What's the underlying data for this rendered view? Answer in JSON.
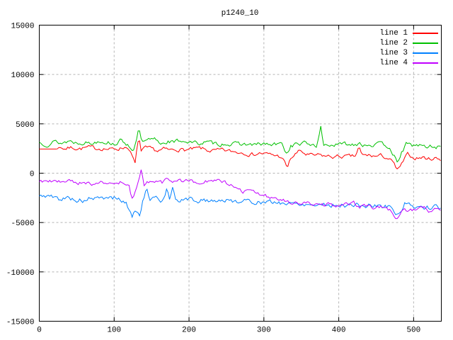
{
  "chart_data": {
    "type": "line",
    "title": "p1240_10",
    "xlabel": "",
    "ylabel": "",
    "xlim": [
      0,
      537
    ],
    "ylim": [
      -15000,
      15000
    ],
    "xticks": [
      0,
      100,
      200,
      300,
      400,
      500
    ],
    "yticks": [
      -15000,
      -10000,
      -5000,
      0,
      5000,
      10000,
      15000
    ],
    "grid": "dashed",
    "grid_color": "#b5b5b5",
    "border_color": "#000000",
    "background": "#ffffff",
    "legend_position": "top-right-inside",
    "sample_step": 2,
    "noise_smooth": 0.55,
    "series": [
      {
        "name": "line 1",
        "color": "#ff0000",
        "noise_amp": 210,
        "seed": 7,
        "flat_until": 24,
        "keypoints": [
          [
            0,
            2450
          ],
          [
            24,
            2450
          ],
          [
            28,
            2700
          ],
          [
            34,
            2500
          ],
          [
            45,
            2600
          ],
          [
            55,
            2500
          ],
          [
            65,
            2600
          ],
          [
            75,
            2500
          ],
          [
            85,
            2550
          ],
          [
            95,
            2400
          ],
          [
            105,
            2500
          ],
          [
            112,
            2600
          ],
          [
            118,
            2700
          ],
          [
            124,
            1700
          ],
          [
            128,
            900
          ],
          [
            133,
            3800
          ],
          [
            136,
            2200
          ],
          [
            142,
            2500
          ],
          [
            150,
            2400
          ],
          [
            158,
            2250
          ],
          [
            166,
            2400
          ],
          [
            175,
            2300
          ],
          [
            185,
            2450
          ],
          [
            195,
            2350
          ],
          [
            205,
            2400
          ],
          [
            215,
            2500
          ],
          [
            225,
            2300
          ],
          [
            235,
            2250
          ],
          [
            245,
            2300
          ],
          [
            255,
            2200
          ],
          [
            265,
            2150
          ],
          [
            275,
            2100
          ],
          [
            285,
            1900
          ],
          [
            295,
            2050
          ],
          [
            305,
            1900
          ],
          [
            315,
            1800
          ],
          [
            322,
            1700
          ],
          [
            327,
            1200
          ],
          [
            331,
            500
          ],
          [
            336,
            1500
          ],
          [
            345,
            2100
          ],
          [
            349,
            2250
          ],
          [
            356,
            1900
          ],
          [
            365,
            1750
          ],
          [
            375,
            1800
          ],
          [
            385,
            1700
          ],
          [
            395,
            1650
          ],
          [
            405,
            1700
          ],
          [
            415,
            1650
          ],
          [
            422,
            1700
          ],
          [
            427,
            2650
          ],
          [
            431,
            1750
          ],
          [
            440,
            1800
          ],
          [
            450,
            1700
          ],
          [
            458,
            1750
          ],
          [
            466,
            1500
          ],
          [
            472,
            1100
          ],
          [
            477,
            430
          ],
          [
            481,
            400
          ],
          [
            487,
            1300
          ],
          [
            493,
            1950
          ],
          [
            498,
            1600
          ],
          [
            505,
            1550
          ],
          [
            512,
            1600
          ],
          [
            520,
            1450
          ],
          [
            528,
            1550
          ],
          [
            537,
            1400
          ]
        ]
      },
      {
        "name": "line 2",
        "color": "#00c000",
        "noise_amp": 230,
        "seed": 13,
        "flat_until": 0,
        "keypoints": [
          [
            0,
            3100
          ],
          [
            10,
            3000
          ],
          [
            20,
            3200
          ],
          [
            30,
            3050
          ],
          [
            40,
            3300
          ],
          [
            50,
            3100
          ],
          [
            60,
            3200
          ],
          [
            70,
            3000
          ],
          [
            80,
            3350
          ],
          [
            90,
            3200
          ],
          [
            100,
            3000
          ],
          [
            108,
            3250
          ],
          [
            115,
            3100
          ],
          [
            120,
            2800
          ],
          [
            126,
            2400
          ],
          [
            130,
            3200
          ],
          [
            133,
            4700
          ],
          [
            137,
            3000
          ],
          [
            145,
            3250
          ],
          [
            155,
            3400
          ],
          [
            163,
            3000
          ],
          [
            172,
            3300
          ],
          [
            180,
            3100
          ],
          [
            190,
            3350
          ],
          [
            200,
            3200
          ],
          [
            210,
            3000
          ],
          [
            220,
            3150
          ],
          [
            230,
            3000
          ],
          [
            240,
            2950
          ],
          [
            250,
            3050
          ],
          [
            260,
            2900
          ],
          [
            270,
            2950
          ],
          [
            280,
            2900
          ],
          [
            290,
            2850
          ],
          [
            300,
            2950
          ],
          [
            310,
            2850
          ],
          [
            318,
            2900
          ],
          [
            325,
            2900
          ],
          [
            331,
            1900
          ],
          [
            336,
            2800
          ],
          [
            345,
            2950
          ],
          [
            355,
            3000
          ],
          [
            365,
            2900
          ],
          [
            371,
            2850
          ],
          [
            376,
            4600
          ],
          [
            380,
            2850
          ],
          [
            390,
            2900
          ],
          [
            400,
            2850
          ],
          [
            408,
            2950
          ],
          [
            416,
            2900
          ],
          [
            424,
            3000
          ],
          [
            427,
            3300
          ],
          [
            431,
            2900
          ],
          [
            440,
            2950
          ],
          [
            450,
            2900
          ],
          [
            460,
            2850
          ],
          [
            468,
            2700
          ],
          [
            474,
            1800
          ],
          [
            479,
            700
          ],
          [
            484,
            2200
          ],
          [
            490,
            2900
          ],
          [
            497,
            2800
          ],
          [
            505,
            2850
          ],
          [
            512,
            2750
          ],
          [
            518,
            2600
          ],
          [
            525,
            2750
          ],
          [
            531,
            2650
          ],
          [
            537,
            2700
          ]
        ]
      },
      {
        "name": "line 3",
        "color": "#0080ff",
        "noise_amp": 250,
        "seed": 5,
        "flat_until": 0,
        "keypoints": [
          [
            0,
            -2400
          ],
          [
            10,
            -2250
          ],
          [
            20,
            -2500
          ],
          [
            30,
            -2650
          ],
          [
            40,
            -2450
          ],
          [
            50,
            -2700
          ],
          [
            60,
            -2800
          ],
          [
            70,
            -2500
          ],
          [
            80,
            -2650
          ],
          [
            90,
            -2500
          ],
          [
            100,
            -2450
          ],
          [
            108,
            -2700
          ],
          [
            115,
            -3000
          ],
          [
            120,
            -3600
          ],
          [
            124,
            -4400
          ],
          [
            129,
            -3500
          ],
          [
            134,
            -4300
          ],
          [
            139,
            -2600
          ],
          [
            143,
            -1600
          ],
          [
            148,
            -2800
          ],
          [
            155,
            -2550
          ],
          [
            161,
            -2950
          ],
          [
            167,
            -2400
          ],
          [
            170,
            -1400
          ],
          [
            174,
            -2500
          ],
          [
            178,
            -1200
          ],
          [
            182,
            -2700
          ],
          [
            190,
            -2750
          ],
          [
            200,
            -2600
          ],
          [
            210,
            -2800
          ],
          [
            220,
            -2700
          ],
          [
            230,
            -2800
          ],
          [
            240,
            -2700
          ],
          [
            250,
            -2780
          ],
          [
            260,
            -2820
          ],
          [
            270,
            -2750
          ],
          [
            280,
            -2900
          ],
          [
            290,
            -2850
          ],
          [
            300,
            -2950
          ],
          [
            310,
            -3000
          ],
          [
            320,
            -2950
          ],
          [
            330,
            -3050
          ],
          [
            340,
            -3100
          ],
          [
            350,
            -3050
          ],
          [
            360,
            -3120
          ],
          [
            370,
            -3180
          ],
          [
            380,
            -3100
          ],
          [
            390,
            -3220
          ],
          [
            400,
            -3180
          ],
          [
            410,
            -3260
          ],
          [
            420,
            -3220
          ],
          [
            430,
            -3320
          ],
          [
            440,
            -3260
          ],
          [
            450,
            -3320
          ],
          [
            460,
            -3380
          ],
          [
            468,
            -3300
          ],
          [
            473,
            -3700
          ],
          [
            477,
            -4400
          ],
          [
            482,
            -3900
          ],
          [
            488,
            -3000
          ],
          [
            492,
            -3200
          ],
          [
            497,
            -3450
          ],
          [
            505,
            -3300
          ],
          [
            512,
            -3420
          ],
          [
            520,
            -3500
          ],
          [
            528,
            -3420
          ],
          [
            537,
            -3600
          ]
        ]
      },
      {
        "name": "line 4",
        "color": "#c000ff",
        "noise_amp": 210,
        "seed": 9,
        "flat_until": 0,
        "keypoints": [
          [
            0,
            -750
          ],
          [
            10,
            -900
          ],
          [
            20,
            -800
          ],
          [
            30,
            -950
          ],
          [
            40,
            -850
          ],
          [
            50,
            -1000
          ],
          [
            60,
            -900
          ],
          [
            70,
            -1050
          ],
          [
            80,
            -950
          ],
          [
            90,
            -1000
          ],
          [
            100,
            -1150
          ],
          [
            108,
            -950
          ],
          [
            114,
            -1200
          ],
          [
            120,
            -1500
          ],
          [
            124,
            -2600
          ],
          [
            129,
            -1700
          ],
          [
            133,
            -900
          ],
          [
            136,
            100
          ],
          [
            140,
            -1300
          ],
          [
            146,
            -950
          ],
          [
            152,
            -1050
          ],
          [
            158,
            -850
          ],
          [
            164,
            -950
          ],
          [
            170,
            -450
          ],
          [
            176,
            -750
          ],
          [
            182,
            -900
          ],
          [
            190,
            -800
          ],
          [
            198,
            -650
          ],
          [
            206,
            -800
          ],
          [
            214,
            -850
          ],
          [
            222,
            -750
          ],
          [
            230,
            -900
          ],
          [
            238,
            -850
          ],
          [
            246,
            -950
          ],
          [
            252,
            -1100
          ],
          [
            258,
            -1300
          ],
          [
            264,
            -1650
          ],
          [
            270,
            -1800
          ],
          [
            278,
            -1900
          ],
          [
            286,
            -2000
          ],
          [
            294,
            -2150
          ],
          [
            300,
            -2250
          ],
          [
            308,
            -2400
          ],
          [
            316,
            -2550
          ],
          [
            324,
            -2700
          ],
          [
            332,
            -2850
          ],
          [
            340,
            -2950
          ],
          [
            348,
            -3050
          ],
          [
            356,
            -3100
          ],
          [
            364,
            -3050
          ],
          [
            372,
            -3150
          ],
          [
            380,
            -3250
          ],
          [
            388,
            -3150
          ],
          [
            396,
            -3300
          ],
          [
            404,
            -3250
          ],
          [
            412,
            -3150
          ],
          [
            420,
            -3100
          ],
          [
            428,
            -3400
          ],
          [
            436,
            -3300
          ],
          [
            444,
            -3500
          ],
          [
            452,
            -3420
          ],
          [
            460,
            -3520
          ],
          [
            468,
            -3700
          ],
          [
            473,
            -4200
          ],
          [
            477,
            -4800
          ],
          [
            482,
            -4400
          ],
          [
            487,
            -3500
          ],
          [
            493,
            -3750
          ],
          [
            500,
            -3650
          ],
          [
            507,
            -3750
          ],
          [
            514,
            -3550
          ],
          [
            521,
            -3820
          ],
          [
            528,
            -3700
          ],
          [
            537,
            -3750
          ]
        ]
      }
    ]
  }
}
